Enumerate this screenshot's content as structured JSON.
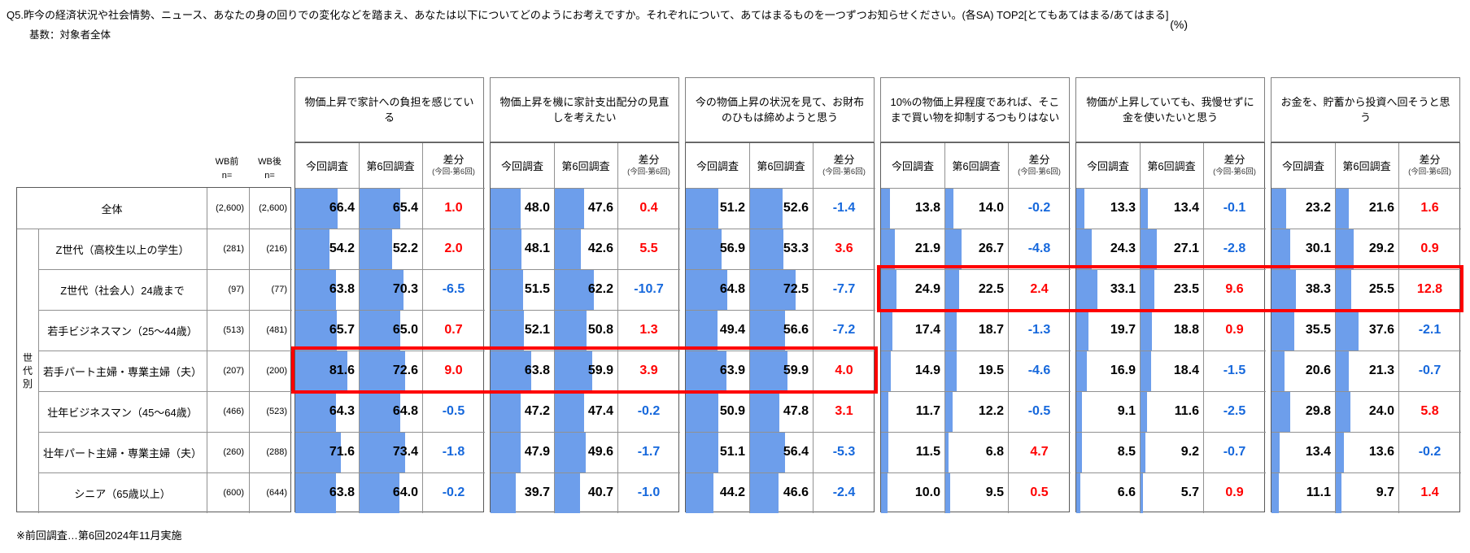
{
  "header": {
    "question_title": "Q5.昨今の経済状況や社会情勢、ニュース、あなたの身の回りでの変化などを踏まえ、あなたは以下についてどのようにお考えですか。それぞれについて、あてはまるものを一つずつお知らせください。(各SA) TOP2[とてもあてはまる/あてはまる]",
    "unit_label": "(%)",
    "base_label": "基数：対象者全体"
  },
  "footnote": "※前回調査…第6回2024年11月実施",
  "table": {
    "n_col_headers": [
      [
        "WB前",
        "n="
      ],
      [
        "WB後",
        "n="
      ]
    ],
    "sub_headers": {
      "current": "今回調査",
      "previous": "第6回調査",
      "diff": "差分",
      "diff_note": "(今回-第6回)"
    },
    "generation_axis_label": "世代別",
    "questions": [
      "物価上昇で家計への負担を感じている",
      "物価上昇を機に家計支出配分の見直しを考えたい",
      "今の物価上昇の状況を見て、お財布のひもは締めようと思う",
      "10%の物価上昇程度であれば、そこまで買い物を抑制するつもりはない",
      "物価が上昇していても、我慢せずに金を使いたいと思う",
      "お金を、貯蓄から投資へ回そうと思う"
    ],
    "rows": [
      {
        "label": "全体",
        "n_pre": "(2,600)",
        "n_post": "(2,600)",
        "values": [
          [
            66.4,
            65.4,
            1.0
          ],
          [
            48.0,
            47.6,
            0.4
          ],
          [
            51.2,
            52.6,
            -1.4
          ],
          [
            13.8,
            14.0,
            -0.2
          ],
          [
            13.3,
            13.4,
            -0.1
          ],
          [
            23.2,
            21.6,
            1.6
          ]
        ]
      },
      {
        "label": "Z世代（高校生以上の学生）",
        "n_pre": "(281)",
        "n_post": "(216)",
        "values": [
          [
            54.2,
            52.2,
            2.0
          ],
          [
            48.1,
            42.6,
            5.5
          ],
          [
            56.9,
            53.3,
            3.6
          ],
          [
            21.9,
            26.7,
            -4.8
          ],
          [
            24.3,
            27.1,
            -2.8
          ],
          [
            30.1,
            29.2,
            0.9
          ]
        ]
      },
      {
        "label": "Z世代（社会人）24歳まで",
        "n_pre": "(97)",
        "n_post": "(77)",
        "values": [
          [
            63.8,
            70.3,
            -6.5
          ],
          [
            51.5,
            62.2,
            -10.7
          ],
          [
            64.8,
            72.5,
            -7.7
          ],
          [
            24.9,
            22.5,
            2.4
          ],
          [
            33.1,
            23.5,
            9.6
          ],
          [
            38.3,
            25.5,
            12.8
          ]
        ]
      },
      {
        "label": "若手ビジネスマン（25～44歳）",
        "n_pre": "(513)",
        "n_post": "(481)",
        "values": [
          [
            65.7,
            65.0,
            0.7
          ],
          [
            52.1,
            50.8,
            1.3
          ],
          [
            49.4,
            56.6,
            -7.2
          ],
          [
            17.4,
            18.7,
            -1.3
          ],
          [
            19.7,
            18.8,
            0.9
          ],
          [
            35.5,
            37.6,
            -2.1
          ]
        ]
      },
      {
        "label": "若手パート主婦・専業主婦（夫）",
        "n_pre": "(207)",
        "n_post": "(200)",
        "values": [
          [
            81.6,
            72.6,
            9.0
          ],
          [
            63.8,
            59.9,
            3.9
          ],
          [
            63.9,
            59.9,
            4.0
          ],
          [
            14.9,
            19.5,
            -4.6
          ],
          [
            16.9,
            18.4,
            -1.5
          ],
          [
            20.6,
            21.3,
            -0.7
          ]
        ]
      },
      {
        "label": "壮年ビジネスマン（45～64歳）",
        "n_pre": "(466)",
        "n_post": "(523)",
        "values": [
          [
            64.3,
            64.8,
            -0.5
          ],
          [
            47.2,
            47.4,
            -0.2
          ],
          [
            50.9,
            47.8,
            3.1
          ],
          [
            11.7,
            12.2,
            -0.5
          ],
          [
            9.1,
            11.6,
            -2.5
          ],
          [
            29.8,
            24.0,
            5.8
          ]
        ]
      },
      {
        "label": "壮年パート主婦・専業主婦（夫）",
        "n_pre": "(260)",
        "n_post": "(288)",
        "values": [
          [
            71.6,
            73.4,
            -1.8
          ],
          [
            47.9,
            49.6,
            -1.7
          ],
          [
            51.1,
            56.4,
            -5.3
          ],
          [
            11.5,
            6.8,
            4.7
          ],
          [
            8.5,
            9.2,
            -0.7
          ],
          [
            13.4,
            13.6,
            -0.2
          ]
        ]
      },
      {
        "label": "シニア（65歳以上）",
        "n_pre": "(600)",
        "n_post": "(644)",
        "values": [
          [
            63.8,
            64.0,
            -0.2
          ],
          [
            39.7,
            40.7,
            -1.0
          ],
          [
            44.2,
            46.6,
            -2.4
          ],
          [
            10.0,
            9.5,
            0.5
          ],
          [
            6.6,
            5.7,
            0.9
          ],
          [
            11.1,
            9.7,
            1.4
          ]
        ]
      }
    ],
    "highlights": [
      {
        "row_index": 4,
        "row_label": "若手パート主婦・専業主婦（夫）",
        "question_start": 0,
        "question_end": 2
      },
      {
        "row_index": 2,
        "row_label": "Z世代（社会人）24歳まで",
        "question_start": 3,
        "question_end": 5
      }
    ]
  },
  "colors": {
    "bar": "#6d9eeb",
    "diff_positive": "#ff0000",
    "diff_negative": "#1668dc",
    "highlight": "#ff0000",
    "grid": "#919191"
  },
  "chart_data": {
    "type": "bar",
    "title": "Q5 TOP2[とてもあてはまる/あてはまる]",
    "ylabel": "(%)",
    "xlim": [
      0,
      100
    ],
    "categories": [
      "全体",
      "Z世代（高校生以上の学生）",
      "Z世代（社会人）24歳まで",
      "若手ビジネスマン（25～44歳）",
      "若手パート主婦・専業主婦（夫）",
      "壮年ビジネスマン（45～64歳）",
      "壮年パート主婦・専業主婦（夫）",
      "シニア（65歳以上）"
    ],
    "groups": [
      {
        "question": "物価上昇で家計への負担を感じている",
        "series": [
          {
            "name": "今回調査",
            "values": [
              66.4,
              54.2,
              63.8,
              65.7,
              81.6,
              64.3,
              71.6,
              63.8
            ]
          },
          {
            "name": "第6回調査",
            "values": [
              65.4,
              52.2,
              70.3,
              65.0,
              72.6,
              64.8,
              73.4,
              64.0
            ]
          },
          {
            "name": "差分(今回-第6回)",
            "values": [
              1.0,
              2.0,
              -6.5,
              0.7,
              9.0,
              -0.5,
              -1.8,
              -0.2
            ]
          }
        ]
      },
      {
        "question": "物価上昇を機に家計支出配分の見直しを考えたい",
        "series": [
          {
            "name": "今回調査",
            "values": [
              48.0,
              48.1,
              51.5,
              52.1,
              63.8,
              47.2,
              47.9,
              39.7
            ]
          },
          {
            "name": "第6回調査",
            "values": [
              47.6,
              42.6,
              62.2,
              50.8,
              59.9,
              47.4,
              49.6,
              40.7
            ]
          },
          {
            "name": "差分(今回-第6回)",
            "values": [
              0.4,
              5.5,
              -10.7,
              1.3,
              3.9,
              -0.2,
              -1.7,
              -1.0
            ]
          }
        ]
      },
      {
        "question": "今の物価上昇の状況を見て、お財布のひもは締めようと思う",
        "series": [
          {
            "name": "今回調査",
            "values": [
              51.2,
              56.9,
              64.8,
              49.4,
              63.9,
              50.9,
              51.1,
              44.2
            ]
          },
          {
            "name": "第6回調査",
            "values": [
              52.6,
              53.3,
              72.5,
              56.6,
              59.9,
              47.8,
              56.4,
              46.6
            ]
          },
          {
            "name": "差分(今回-第6回)",
            "values": [
              -1.4,
              3.6,
              -7.7,
              -7.2,
              4.0,
              3.1,
              -5.3,
              -2.4
            ]
          }
        ]
      },
      {
        "question": "10%の物価上昇程度であれば、そこまで買い物を抑制するつもりはない",
        "series": [
          {
            "name": "今回調査",
            "values": [
              13.8,
              21.9,
              24.9,
              17.4,
              14.9,
              11.7,
              11.5,
              10.0
            ]
          },
          {
            "name": "第6回調査",
            "values": [
              14.0,
              26.7,
              22.5,
              18.7,
              19.5,
              12.2,
              6.8,
              9.5
            ]
          },
          {
            "name": "差分(今回-第6回)",
            "values": [
              -0.2,
              -4.8,
              2.4,
              -1.3,
              -4.6,
              -0.5,
              4.7,
              0.5
            ]
          }
        ]
      },
      {
        "question": "物価が上昇していても、我慢せずに金を使いたいと思う",
        "series": [
          {
            "name": "今回調査",
            "values": [
              13.3,
              24.3,
              33.1,
              19.7,
              16.9,
              9.1,
              8.5,
              6.6
            ]
          },
          {
            "name": "第6回調査",
            "values": [
              13.4,
              27.1,
              23.5,
              18.8,
              18.4,
              11.6,
              9.2,
              5.7
            ]
          },
          {
            "name": "差分(今回-第6回)",
            "values": [
              -0.1,
              -2.8,
              9.6,
              0.9,
              -1.5,
              -2.5,
              -0.7,
              0.9
            ]
          }
        ]
      },
      {
        "question": "お金を、貯蓄から投資へ回そうと思う",
        "series": [
          {
            "name": "今回調査",
            "values": [
              23.2,
              30.1,
              38.3,
              35.5,
              20.6,
              29.8,
              13.4,
              11.1
            ]
          },
          {
            "name": "第6回調査",
            "values": [
              21.6,
              29.2,
              25.5,
              37.6,
              21.3,
              24.0,
              13.6,
              9.7
            ]
          },
          {
            "name": "差分(今回-第6回)",
            "values": [
              1.6,
              0.9,
              12.8,
              -2.1,
              -0.7,
              5.8,
              -0.2,
              1.4
            ]
          }
        ]
      }
    ]
  }
}
